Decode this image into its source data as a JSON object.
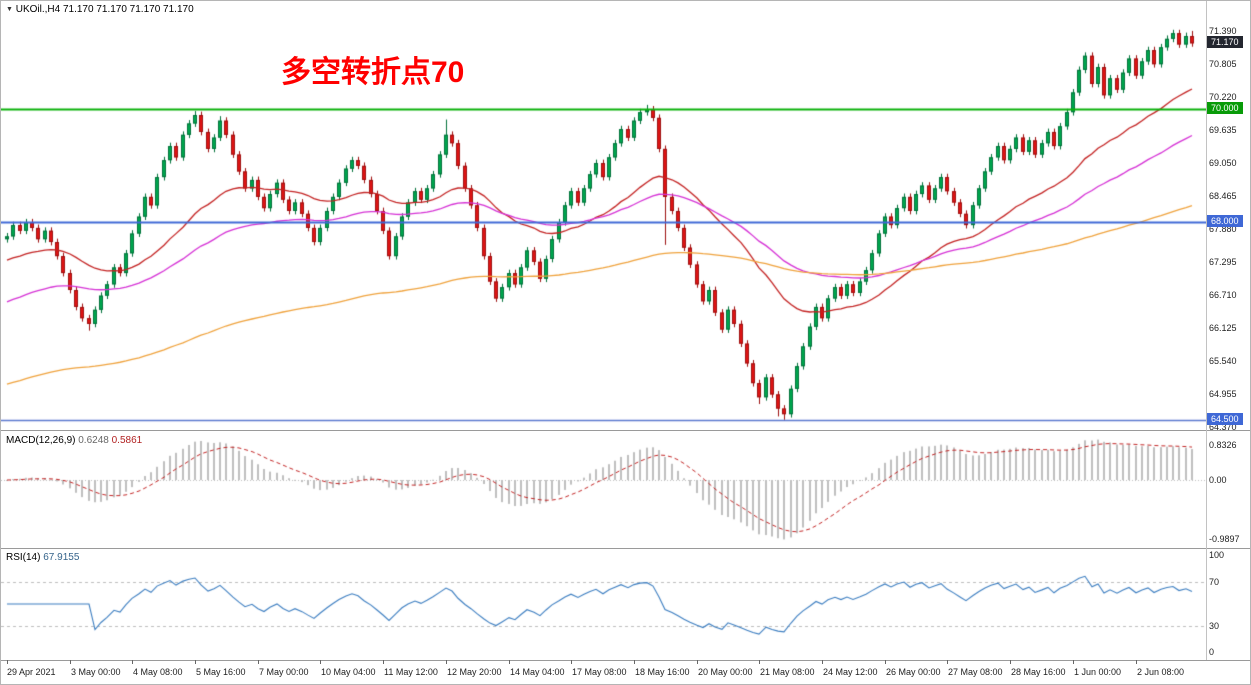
{
  "window": {
    "dropdown_icon": "▼",
    "symbol_ohlc_line": "UKOil.,H4  71.170 71.170 71.170 71.170"
  },
  "annotation": {
    "text": "多空转折点70",
    "color": "#ff0000"
  },
  "colors": {
    "candle_up_fill": "#00a84f",
    "candle_up_stroke": "#00703a",
    "candle_down_fill": "#e01515",
    "candle_down_stroke": "#9c0f0f",
    "macd_histogram": "#bfbfbf",
    "macd_signal": "#c22424",
    "rsi_line": "#3b7dc0",
    "grid_dash": "#bdbdbd"
  },
  "price_axis": {
    "labels": [
      {
        "text": "71.390",
        "value": 71.39
      },
      {
        "text": "70.805",
        "value": 70.805
      },
      {
        "text": "70.220",
        "value": 70.22
      },
      {
        "text": "69.635",
        "value": 69.635
      },
      {
        "text": "69.050",
        "value": 69.05
      },
      {
        "text": "68.465",
        "value": 68.465
      },
      {
        "text": "67.880",
        "value": 67.88
      },
      {
        "text": "67.295",
        "value": 67.295
      },
      {
        "text": "66.710",
        "value": 66.71
      },
      {
        "text": "66.125",
        "value": 66.125
      },
      {
        "text": "65.540",
        "value": 65.54
      },
      {
        "text": "64.955",
        "value": 64.955
      },
      {
        "text": "64.370",
        "value": 64.37
      }
    ],
    "badges": [
      {
        "text": "71.170",
        "value": 71.17,
        "bg": "#23262f"
      },
      {
        "text": "70.000",
        "value": 70.0,
        "bg": "#089b08"
      },
      {
        "text": "68.000",
        "value": 68.0,
        "bg": "#3f68d6"
      },
      {
        "text": "64.500",
        "value": 64.5,
        "bg": "#3f68d6"
      }
    ]
  },
  "levels": [
    {
      "value": 70.0,
      "color": "#0ab00a",
      "width": 2
    },
    {
      "value": 68.0,
      "color": "#3f68d6",
      "width": 2
    },
    {
      "value": 64.5,
      "color": "#5b79cf",
      "width": 1.5
    }
  ],
  "indicators": {
    "macd": {
      "label": "MACD(12,26,9)",
      "value_main": "0.6248",
      "value_signal": "0.5861",
      "axis_top": "0.8326",
      "axis_zero": "0.00",
      "axis_bottom": "-0.9897",
      "fast": 12,
      "slow": 26,
      "signal": 9
    },
    "rsi": {
      "label": "RSI(14)",
      "value": "67.9155",
      "axis_labels": [
        "100",
        "70",
        "30",
        "0"
      ],
      "period": 14,
      "levels": [
        70,
        30
      ]
    }
  },
  "time_axis": {
    "candles_per_label": 10,
    "labels": [
      "29 Apr 2021",
      "3 May 00:00",
      "4 May 08:00",
      "5 May 16:00",
      "7 May 00:00",
      "10 May 04:00",
      "11 May 12:00",
      "12 May 20:00",
      "14 May 04:00",
      "17 May 08:00",
      "18 May 16:00",
      "20 May 00:00",
      "21 May 08:00",
      "24 May 12:00",
      "26 May 00:00",
      "27 May 08:00",
      "28 May 16:00",
      "1 Jun 00:00",
      "2 Jun 08:00"
    ]
  },
  "chart_data": {
    "type": "candlestick",
    "symbol": "UKOil",
    "timeframe": "H4",
    "title": "UKOil.,H4",
    "ylim": [
      64.32,
      71.92
    ],
    "first_open": 67.7,
    "default_wick": 0.06,
    "closes": [
      67.75,
      67.95,
      67.85,
      68.0,
      67.9,
      67.7,
      67.85,
      67.65,
      67.4,
      67.1,
      66.8,
      66.5,
      66.3,
      66.2,
      66.45,
      66.7,
      66.9,
      67.2,
      67.1,
      67.45,
      67.8,
      68.1,
      68.45,
      68.3,
      68.8,
      69.1,
      69.35,
      69.15,
      69.55,
      69.75,
      69.9,
      69.6,
      69.3,
      69.5,
      69.8,
      69.55,
      69.2,
      68.9,
      68.6,
      68.75,
      68.45,
      68.25,
      68.5,
      68.7,
      68.4,
      68.2,
      68.35,
      68.15,
      67.9,
      67.65,
      67.9,
      68.2,
      68.45,
      68.7,
      68.95,
      69.1,
      69.0,
      68.75,
      68.5,
      68.2,
      67.85,
      67.4,
      67.75,
      68.1,
      68.35,
      68.55,
      68.4,
      68.6,
      68.85,
      69.2,
      69.55,
      69.4,
      69.0,
      68.6,
      68.3,
      67.9,
      67.4,
      66.95,
      66.65,
      66.85,
      67.1,
      66.9,
      67.2,
      67.5,
      67.3,
      67.0,
      67.35,
      67.7,
      68.0,
      68.3,
      68.55,
      68.35,
      68.6,
      68.85,
      69.05,
      68.8,
      69.15,
      69.4,
      69.65,
      69.5,
      69.8,
      69.95,
      70.0,
      69.85,
      69.3,
      68.45,
      68.2,
      67.9,
      67.55,
      67.25,
      66.9,
      66.6,
      66.8,
      66.4,
      66.1,
      66.45,
      66.2,
      65.85,
      65.5,
      65.15,
      64.9,
      65.25,
      64.95,
      64.7,
      64.6,
      65.05,
      65.45,
      65.8,
      66.15,
      66.5,
      66.3,
      66.65,
      66.85,
      66.7,
      66.9,
      66.75,
      66.95,
      67.15,
      67.45,
      67.8,
      68.1,
      67.95,
      68.25,
      68.45,
      68.2,
      68.5,
      68.65,
      68.4,
      68.6,
      68.8,
      68.55,
      68.35,
      68.15,
      67.95,
      68.3,
      68.6,
      68.9,
      69.15,
      69.35,
      69.1,
      69.3,
      69.5,
      69.25,
      69.45,
      69.2,
      69.4,
      69.6,
      69.35,
      69.7,
      69.95,
      70.3,
      70.7,
      70.95,
      70.45,
      70.75,
      70.25,
      70.55,
      70.35,
      70.65,
      70.9,
      70.6,
      70.85,
      71.05,
      70.8,
      71.1,
      71.25,
      71.35,
      71.15,
      71.3,
      71.17
    ],
    "spikes": {
      "13": {
        "l": 66.08
      },
      "30": {
        "h": 69.97
      },
      "34": {
        "h": 69.88
      },
      "70": {
        "h": 69.82
      },
      "102": {
        "h": 70.08
      },
      "105": {
        "l": 67.6
      },
      "120": {
        "l": 64.78
      },
      "123": {
        "l": 64.56
      },
      "124": {
        "l": 64.5
      },
      "188": {
        "h": 71.36
      },
      "189": {
        "h": 71.39
      }
    },
    "moving_averages": [
      {
        "name": "ma-fast-red",
        "period": 30,
        "seed": 67.3,
        "color": "#c32222"
      },
      {
        "name": "ma-mid-magenta",
        "period": 60,
        "seed": 66.55,
        "color": "#d531d5"
      },
      {
        "name": "ma-slow-orange",
        "period": 170,
        "seed": 65.1,
        "color": "#efa23c"
      }
    ]
  }
}
